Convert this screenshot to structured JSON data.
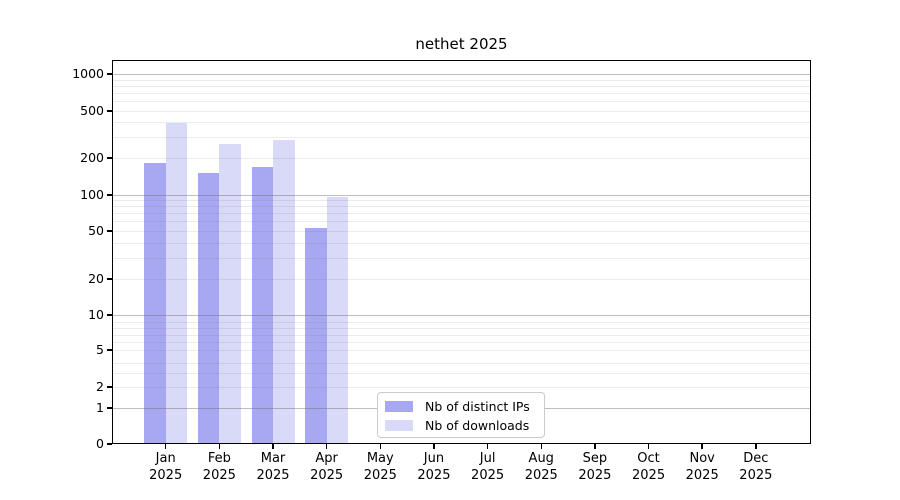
{
  "figure": {
    "background": "#ffffff"
  },
  "chart_data": {
    "type": "bar",
    "title": "nethet 2025",
    "categories": [
      {
        "month": "Jan",
        "year": "2025"
      },
      {
        "month": "Feb",
        "year": "2025"
      },
      {
        "month": "Mar",
        "year": "2025"
      },
      {
        "month": "Apr",
        "year": "2025"
      },
      {
        "month": "May",
        "year": "2025"
      },
      {
        "month": "Jun",
        "year": "2025"
      },
      {
        "month": "Jul",
        "year": "2025"
      },
      {
        "month": "Aug",
        "year": "2025"
      },
      {
        "month": "Sep",
        "year": "2025"
      },
      {
        "month": "Oct",
        "year": "2025"
      },
      {
        "month": "Nov",
        "year": "2025"
      },
      {
        "month": "Dec",
        "year": "2025"
      }
    ],
    "series": [
      {
        "name": "Nb of distinct IPs",
        "color": "#a8a8f2",
        "values": [
          183,
          149,
          168,
          52,
          0,
          0,
          0,
          0,
          0,
          0,
          0,
          0
        ]
      },
      {
        "name": "Nb of downloads",
        "color": "#d9d9f8",
        "values": [
          388,
          262,
          280,
          95,
          0,
          0,
          0,
          0,
          0,
          0,
          0,
          0
        ]
      }
    ],
    "yticks": [
      0,
      1,
      2,
      5,
      10,
      20,
      50,
      100,
      200,
      500,
      1000
    ],
    "yscale": "symlog (logarithmic above 1, linear stub 0-1)",
    "ylim": [
      0,
      1300
    ],
    "grid": "on (major + minor log gridlines, drawn over bars)",
    "legend_position": "lower center"
  }
}
